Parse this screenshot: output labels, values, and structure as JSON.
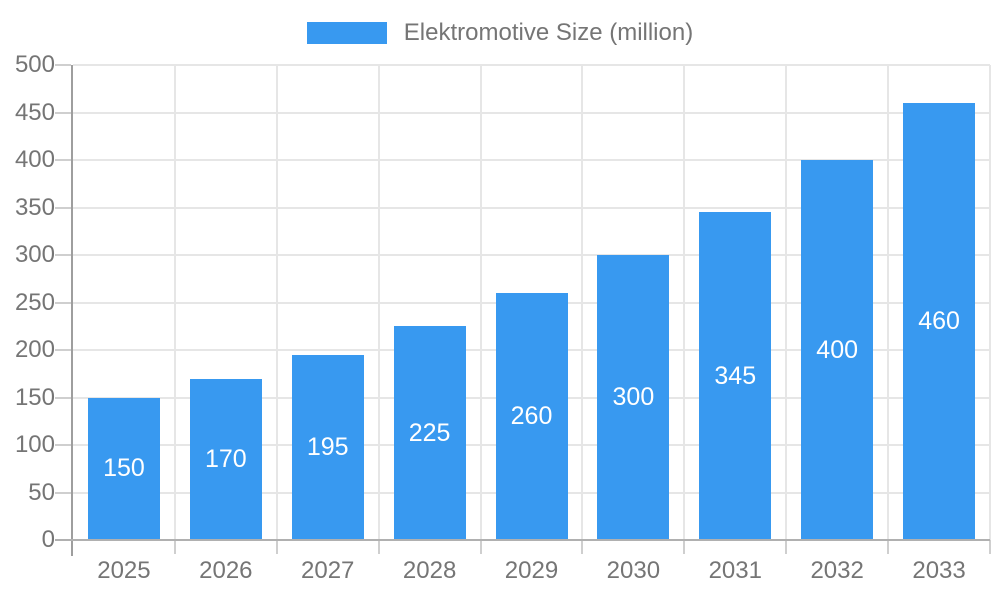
{
  "legend": {
    "label": "Elektromotive Size (million)"
  },
  "chart_data": {
    "type": "bar",
    "title": "Elektromotive Size (million)",
    "series_name": "Elektromotive Size (million)",
    "categories": [
      "2025",
      "2026",
      "2027",
      "2028",
      "2029",
      "2030",
      "2031",
      "2032",
      "2033"
    ],
    "values": [
      150,
      170,
      195,
      225,
      260,
      300,
      345,
      400,
      460
    ],
    "data_labels": [
      150,
      170,
      195,
      225,
      260,
      300,
      345,
      400,
      460
    ],
    "xlabel": "",
    "ylabel": "",
    "ylim": [
      0,
      500
    ],
    "ytick_step": 50,
    "yticks": [
      0,
      50,
      100,
      150,
      200,
      250,
      300,
      350,
      400,
      450,
      500
    ],
    "grid": true,
    "legend_position": "top",
    "colors": {
      "bar": "#3899f0",
      "bar_label_text": "#ffffff",
      "grid": "#e6e6e6",
      "axis_line": "#9e9e9e",
      "baseline": "#b0b0b0",
      "tick": "#cfcfcf",
      "axis_text": "#757575"
    }
  }
}
